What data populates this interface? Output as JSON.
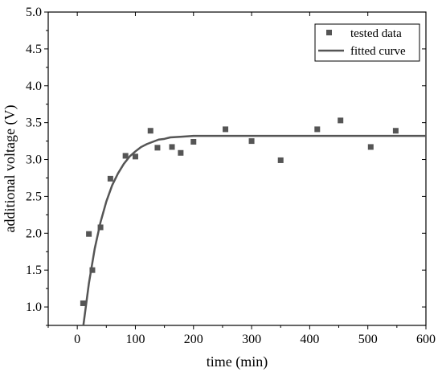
{
  "chart_data": {
    "type": "scatter",
    "xlabel": "time (min)",
    "ylabel": "additional voltage (V)",
    "xlim": [
      -50,
      600
    ],
    "ylim": [
      0.75,
      5.0
    ],
    "xticks": [
      0,
      100,
      200,
      300,
      400,
      500,
      600
    ],
    "yticks": [
      1.0,
      1.5,
      2.0,
      2.5,
      3.0,
      3.5,
      4.0,
      4.5,
      5.0
    ],
    "xtick_labels": [
      "0",
      "100",
      "200",
      "300",
      "400",
      "500",
      "600"
    ],
    "ytick_labels": [
      "1.0",
      "1.5",
      "2.0",
      "2.5",
      "3.0",
      "3.5",
      "4.0",
      "4.5",
      "5.0"
    ],
    "grid": false,
    "legend_position": "top-right",
    "series": [
      {
        "name": "tested data",
        "kind": "scatter",
        "marker": "square",
        "color": "#555555",
        "x": [
          10,
          20,
          26,
          40,
          57,
          83,
          100,
          126,
          138,
          163,
          178,
          200,
          255,
          300,
          350,
          413,
          453,
          505,
          548
        ],
        "y": [
          1.05,
          1.99,
          1.5,
          2.08,
          2.74,
          3.05,
          3.04,
          3.39,
          3.16,
          3.17,
          3.09,
          3.24,
          3.41,
          3.25,
          2.99,
          3.41,
          3.53,
          3.17,
          3.39
        ]
      },
      {
        "name": "fitted curve",
        "kind": "line",
        "color": "#555555",
        "x": [
          0,
          10,
          20,
          30,
          40,
          50,
          60,
          70,
          80,
          90,
          100,
          110,
          120,
          130,
          140,
          150,
          160,
          180,
          200,
          250,
          300,
          400,
          500,
          600
        ],
        "y": [
          -0.06,
          0.72,
          1.32,
          1.79,
          2.15,
          2.43,
          2.65,
          2.81,
          2.94,
          3.04,
          3.11,
          3.17,
          3.21,
          3.24,
          3.27,
          3.28,
          3.3,
          3.31,
          3.32,
          3.32,
          3.32,
          3.32,
          3.32,
          3.32
        ]
      }
    ]
  }
}
